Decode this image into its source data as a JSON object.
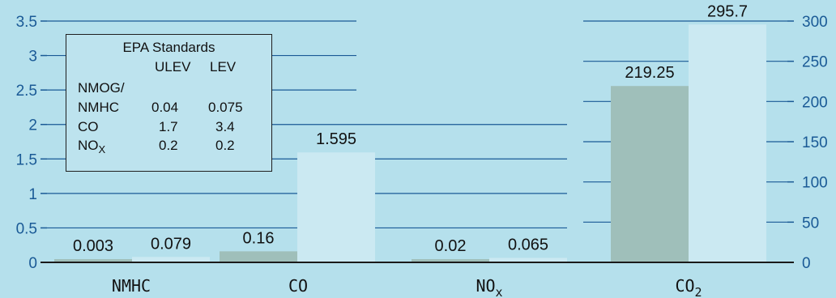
{
  "chart_data": {
    "type": "bar",
    "categories": [
      "NMHC",
      "CO",
      "NO",
      "CO"
    ],
    "category_subscripts": [
      "",
      "",
      "x",
      "2"
    ],
    "series": [
      {
        "values": [
          0.003,
          0.16,
          0.02,
          219.25
        ],
        "labels": [
          "0.003",
          "0.16",
          "0.02",
          "219.25"
        ]
      },
      {
        "values": [
          0.079,
          1.595,
          0.065,
          295.7
        ],
        "labels": [
          "0.079",
          "1.595",
          "0.065",
          "295.7"
        ]
      }
    ],
    "left_axis": {
      "ticks": [
        "0",
        "0.5",
        "1",
        "1.5",
        "2",
        "2.5",
        "3",
        "3.5"
      ],
      "range": [
        0,
        3.5
      ]
    },
    "right_axis": {
      "ticks": [
        "0",
        "50",
        "100",
        "150",
        "200",
        "250",
        "300"
      ],
      "range": [
        0,
        300
      ],
      "applies_to": "CO2"
    },
    "grid": true,
    "colors": {
      "series1": "#9fbfba",
      "series2": "#cbe9f2",
      "axis": "#1a5a96",
      "background": "#b5e0ec"
    },
    "inset_table": {
      "title": "EPA Standards",
      "columns": [
        "ULEV",
        "LEV"
      ],
      "rows": [
        {
          "label": "NMOG/",
          "values": [
            "",
            ""
          ]
        },
        {
          "label": "NMHC",
          "values": [
            "0.04",
            "0.075"
          ]
        },
        {
          "label": "CO",
          "values": [
            "1.7",
            "3.4"
          ]
        },
        {
          "label": "NO",
          "label_subscript": "X",
          "values": [
            "0.2",
            "0.2"
          ]
        }
      ]
    }
  }
}
